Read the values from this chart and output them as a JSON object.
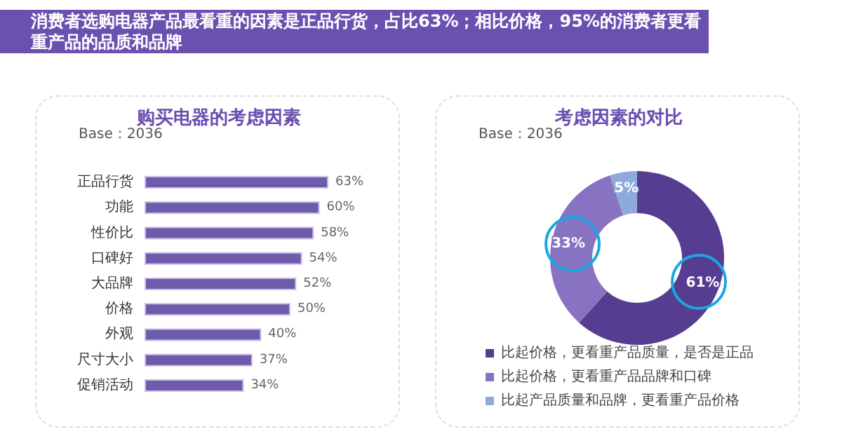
{
  "chart_data": [
    {
      "type": "bar",
      "orientation": "horizontal",
      "title": "购买电器的考虑因素",
      "annotations": [
        "消费者选购电器产品最看重的因素是正品行货，占比63%；相比价格，95%的消费者更看重产品的品质和品牌",
        "Base：2036"
      ],
      "categories": [
        "正品行货",
        "功能",
        "性价比",
        "口碑好",
        "大品牌",
        "价格",
        "外观",
        "尺寸大小",
        "促销活动"
      ],
      "values": [
        63,
        60,
        58,
        54,
        52,
        50,
        40,
        37,
        34
      ],
      "value_labels": [
        "63%",
        "60%",
        "58%",
        "54%",
        "52%",
        "50%",
        "40%",
        "37%",
        "34%"
      ],
      "color": "#6f5bab"
    },
    {
      "type": "donut",
      "title": "考虑因素的对比",
      "annotations": [
        "Base：2036"
      ],
      "categories": [
        "比起价格，更看重产品质量，是否是正品",
        "比起价格，更看重产品品牌和口碑",
        "比起产品质量和品牌，更看重产品价格"
      ],
      "values": [
        61,
        33,
        5
      ],
      "colors": [
        "#563d91",
        "#8873c2",
        "#8ea9db"
      ],
      "value_labels": [
        "61%",
        "33%",
        "5%"
      ],
      "legend": "bottom"
    }
  ]
}
